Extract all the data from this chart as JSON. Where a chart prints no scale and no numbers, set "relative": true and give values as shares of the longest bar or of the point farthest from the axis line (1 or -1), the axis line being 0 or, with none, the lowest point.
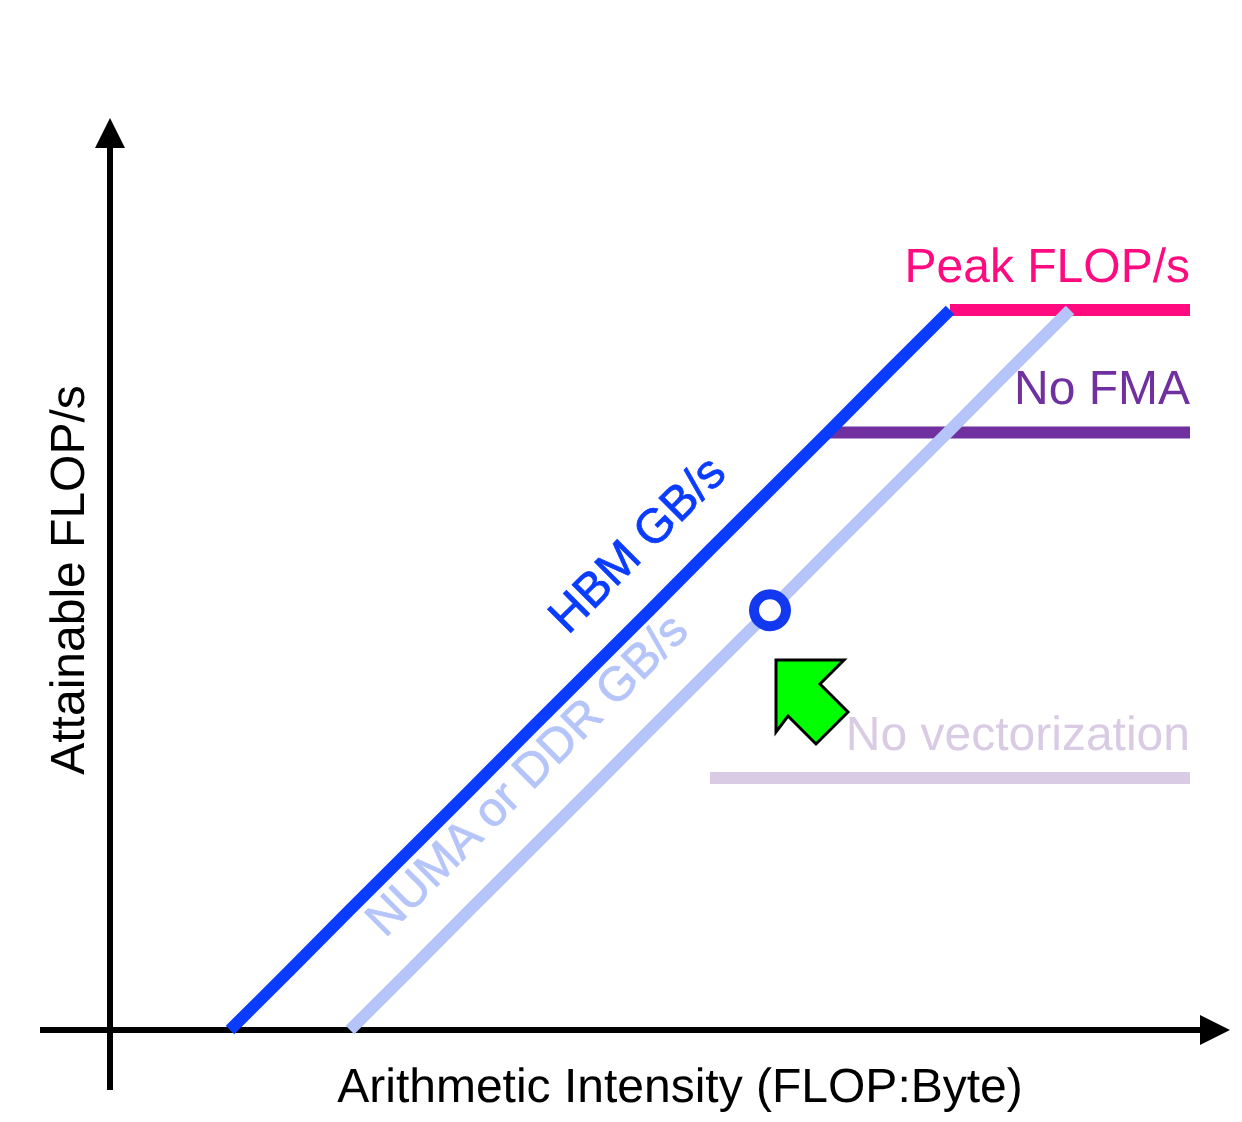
{
  "chart_data": {
    "type": "line",
    "relative": true,
    "xlabel": "Arithmetic Intensity (FLOP:Byte)",
    "ylabel": "Attainable FLOP/s",
    "categories": [
      null,
      null,
      null,
      null,
      null,
      null,
      null,
      null,
      null,
      null,
      null,
      null,
      null,
      null,
      null,
      null,
      null,
      null,
      null
    ],
    "line_style": "solid",
    "legend": "right",
    "grid": false,
    "series": [
      {
        "name": "Peak FLOP/s",
        "color": "#ff0a7f",
        "values": [
          null,
          null,
          null,
          null,
          null,
          null,
          null,
          null,
          null,
          null,
          null,
          null,
          null,
          null,
          1,
          1,
          1,
          1,
          1
        ]
      },
      {
        "name": "No FMA",
        "color": "#7030a0",
        "values": [
          null,
          null,
          null,
          null,
          null,
          null,
          null,
          null,
          null,
          null,
          null,
          null,
          0.83,
          0.83,
          0.83,
          0.83,
          0.83,
          0.83,
          0.83
        ]
      },
      {
        "name": "No vectorization",
        "color": "#dacbe5",
        "values": [
          null,
          null,
          null,
          null,
          null,
          null,
          null,
          null,
          null,
          null,
          0.35,
          0.35,
          0.35,
          0.35,
          0.35,
          0.35,
          0.35,
          0.35,
          0.35
        ]
      },
      {
        "name": "NUMA or DDR GB/s",
        "color": "#b6c5f9",
        "values": [
          null,
          null,
          null,
          null,
          0,
          0.083,
          0.167,
          0.25,
          0.333,
          0.417,
          0.5,
          0.583,
          0.667,
          0.75,
          0.833,
          0.917,
          1,
          null,
          null
        ]
      },
      {
        "name": "HBM GB/s",
        "color": "#0a3cff",
        "values": [
          null,
          null,
          0,
          0.083,
          0.167,
          0.25,
          0.333,
          0.417,
          0.5,
          0.583,
          0.667,
          0.75,
          0.833,
          0.917,
          1,
          null,
          null,
          null,
          null
        ]
      }
    ]
  }
}
